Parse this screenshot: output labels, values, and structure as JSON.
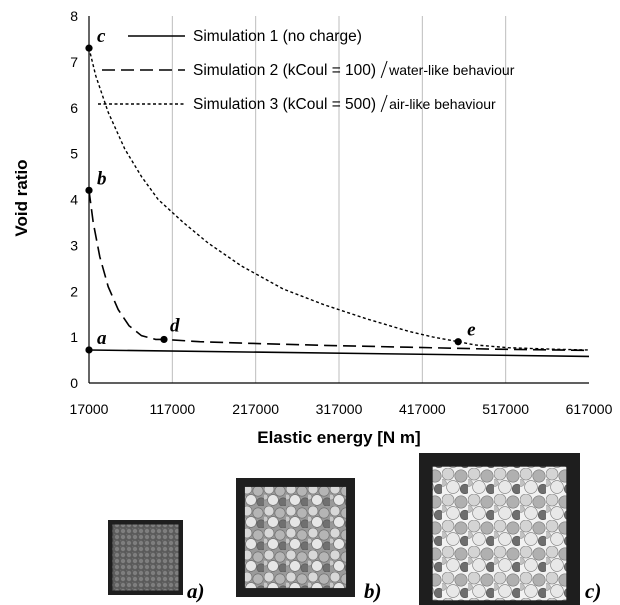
{
  "chart_data": {
    "type": "line",
    "xlabel": "Elastic energy [N m]",
    "ylabel": "Void ratio",
    "xlim": [
      17000,
      617000
    ],
    "ylim": [
      0,
      8
    ],
    "x_ticks": [
      "17000",
      "117000",
      "217000",
      "317000",
      "417000",
      "517000",
      "617000"
    ],
    "y_ticks": [
      "0",
      "1",
      "2",
      "3",
      "4",
      "5",
      "6",
      "7",
      "8"
    ],
    "grid": "vertical",
    "legend_position": "top",
    "series": [
      {
        "name": "Simulation 1 (no charge)",
        "note": "",
        "style": "solid",
        "x": [
          17000,
          617000
        ],
        "y": [
          0.72,
          0.58
        ]
      },
      {
        "name": "Simulation 2 (kCoul = 100)",
        "note": "water-like behaviour",
        "style": "dashed",
        "x": [
          17000,
          22000,
          30000,
          40000,
          52000,
          65000,
          80000,
          97000,
          107000,
          150000,
          200000,
          300000,
          400000,
          500000,
          617000
        ],
        "y": [
          4.2,
          3.5,
          2.75,
          2.1,
          1.6,
          1.25,
          1.03,
          0.95,
          0.95,
          0.9,
          0.87,
          0.82,
          0.78,
          0.74,
          0.71
        ]
      },
      {
        "name": "Simulation 3 (kCoul = 500)",
        "note": "air-like behaviour",
        "style": "dotted",
        "x": [
          17000,
          25000,
          40000,
          60000,
          80000,
          100000,
          130000,
          160000,
          200000,
          250000,
          300000,
          350000,
          400000,
          430000,
          460000,
          480000,
          520000,
          570000,
          617000
        ],
        "y": [
          7.3,
          6.7,
          5.9,
          5.1,
          4.5,
          4.0,
          3.5,
          3.05,
          2.55,
          2.05,
          1.7,
          1.4,
          1.13,
          1.0,
          0.9,
          0.83,
          0.77,
          0.74,
          0.72
        ]
      }
    ],
    "points": [
      {
        "label": "a",
        "x": 17000,
        "y": 0.72
      },
      {
        "label": "b",
        "x": 17000,
        "y": 4.2
      },
      {
        "label": "c",
        "x": 17000,
        "y": 7.3
      },
      {
        "label": "d",
        "x": 107000,
        "y": 0.95
      },
      {
        "label": "e",
        "x": 460000,
        "y": 0.9
      }
    ],
    "panels": [
      {
        "label": "a)",
        "fill": 0.88,
        "shade": "dark"
      },
      {
        "label": "b)",
        "fill": 0.85,
        "shade": "light"
      },
      {
        "label": "c)",
        "fill": 0.83,
        "shade": "light"
      }
    ]
  }
}
